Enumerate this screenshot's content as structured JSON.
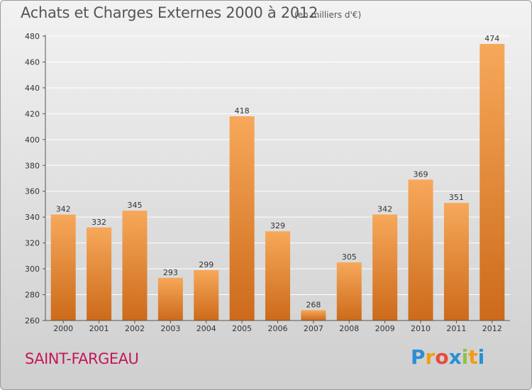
{
  "title": "Achats et Charges Externes 2000 à 2012",
  "subtitle": "(en milliers d'€)",
  "city": "SAINT-FARGEAU",
  "logo": {
    "letters": [
      "P",
      "r",
      "o",
      "x",
      "i",
      "t",
      "i"
    ],
    "colors": [
      "#2a8fd6",
      "#f39c12",
      "#e74c3c",
      "#2a8fd6",
      "#8bc34a",
      "#f39c12",
      "#2a8fd6"
    ]
  },
  "colors": {
    "bar_top": "#f7a85a",
    "bar_bottom": "#cc6a1a",
    "grid": "#ffffff",
    "axis_text": "#333333"
  },
  "chart_data": {
    "type": "bar",
    "categories": [
      "2000",
      "2001",
      "2002",
      "2003",
      "2004",
      "2005",
      "2006",
      "2007",
      "2008",
      "2009",
      "2010",
      "2011",
      "2012"
    ],
    "values": [
      342,
      332,
      345,
      293,
      299,
      418,
      329,
      268,
      305,
      342,
      369,
      351,
      474
    ],
    "title": "Achats et Charges Externes 2000 à 2012",
    "subtitle": "(en milliers d'€)",
    "ylim": [
      260,
      480
    ],
    "yticks": [
      260,
      280,
      300,
      320,
      340,
      360,
      380,
      400,
      420,
      440,
      460,
      480
    ],
    "grid": true,
    "data_labels": true
  }
}
